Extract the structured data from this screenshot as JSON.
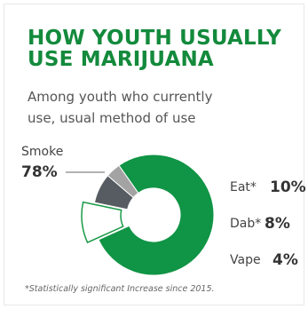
{
  "title_lines": [
    "HOW YOUTH USUALLY",
    "USE MARIJUANA"
  ],
  "subtitle_lines": [
    "Among youth who currently",
    "use, usual method of use"
  ],
  "footnote": "*Statistically significant Increase since 2015.",
  "colors": {
    "title": "#138a3c",
    "smoke": "#109445",
    "eat": "#ffffff",
    "eat_stroke": "#1a9a48",
    "dab": "#565c61",
    "vape": "#a3a3a3"
  },
  "chart_data": {
    "type": "pie",
    "variant": "donut",
    "title": "HOW YOUTH USUALLY USE MARIJUANA",
    "subtitle": "Among youth who currently use, usual method of use",
    "slices": [
      {
        "label": "Smoke",
        "value": 78,
        "value_label": "78%"
      },
      {
        "label": "Eat*",
        "value": 10,
        "value_label": "10%"
      },
      {
        "label": "Dab*",
        "value": 8,
        "value_label": "8%"
      },
      {
        "label": "Vape",
        "value": 4,
        "value_label": "4%"
      }
    ],
    "highlighted": "Eat*"
  }
}
